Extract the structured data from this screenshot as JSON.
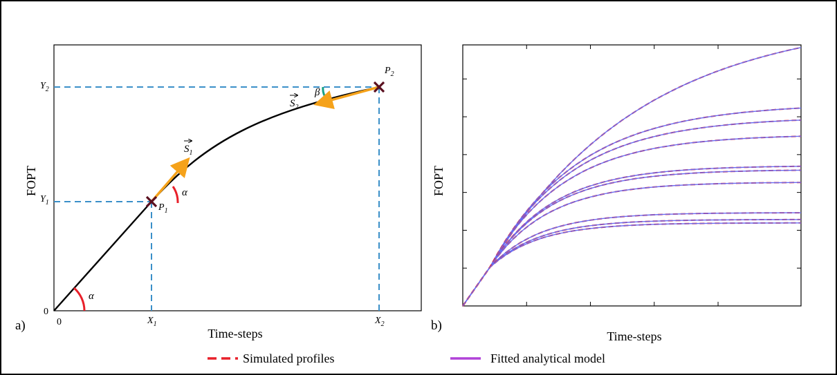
{
  "panel_a": {
    "tag": "a)",
    "ylabel": "FOPT",
    "xlabel": "Time-steps",
    "origin_y": "0",
    "origin_x": "0",
    "x1": "X",
    "x1_sub": "1",
    "x2": "X",
    "x2_sub": "2",
    "y1": "Y",
    "y1_sub": "1",
    "y2": "Y",
    "y2_sub": "2",
    "p1": "P",
    "p1_sub": "1",
    "p2": "P",
    "p2_sub": "2",
    "s1": "S",
    "s1_sub": "1",
    "s2": "S",
    "s2_sub": "2",
    "alpha": "α",
    "beta": "β"
  },
  "panel_b": {
    "tag": "b)",
    "ylabel": "FOPT",
    "xlabel": "Time-steps"
  },
  "legend": {
    "simulated": "Simulated profiles",
    "fitted": "Fitted analytical model"
  },
  "colors": {
    "curve": "#000000",
    "guide": "#3a8fc8",
    "vector": "#f5a21a",
    "angle_alpha": "#e8202a",
    "angle_beta": "#16a085",
    "simulated": "#e8202a",
    "fitted": "#6a6cf0",
    "legend_fitted": "#b042d8"
  },
  "chart_data": {
    "type": "line",
    "series": [
      {
        "final_value": 0.99
      },
      {
        "final_value": 0.758
      },
      {
        "final_value": 0.712
      },
      {
        "final_value": 0.65
      },
      {
        "final_value": 0.535
      },
      {
        "final_value": 0.52
      },
      {
        "final_value": 0.473
      },
      {
        "final_value": 0.357
      },
      {
        "final_value": 0.331
      },
      {
        "final_value": 0.318
      }
    ]
  }
}
